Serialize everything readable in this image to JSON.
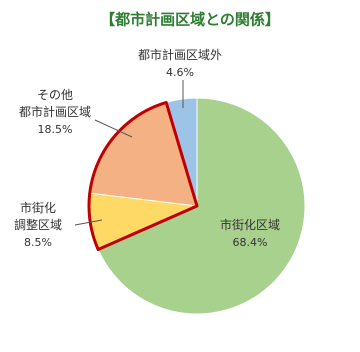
{
  "chart_data": {
    "type": "pie",
    "title": "【都市計画区域との関係】",
    "categories": [
      "市街化区域",
      "市街化\n調整区域",
      "その他\n都市計画区域",
      "都市計画区域外"
    ],
    "values": [
      68.4,
      8.5,
      18.5,
      4.6
    ],
    "value_labels": [
      "68.4%",
      "8.5%",
      "18.5%",
      "4.6%"
    ],
    "colors": [
      "#a9d18e",
      "#ffd966",
      "#f4b183",
      "#9dc3e6"
    ]
  }
}
